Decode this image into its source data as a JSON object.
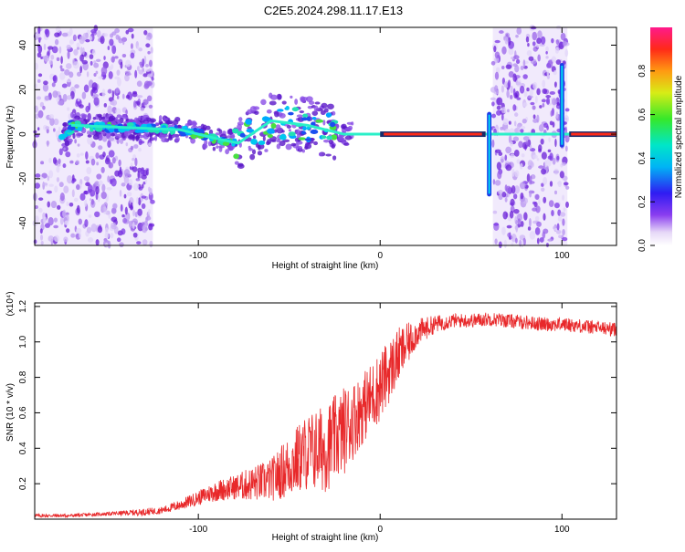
{
  "title": "C2E5.2024.298.11.17.E13",
  "colors": {
    "snr_line": "#e8282a",
    "spectrogram_bg": "#ffffff",
    "scatter_purple": "#7a2be0",
    "scatter_light": "#d9c8f5"
  },
  "chart_data": [
    {
      "type": "heatmap",
      "name": "spectrogram",
      "xlabel": "Height of straight line (km)",
      "ylabel": "Frequency (Hz)",
      "xlim": [
        -190,
        130
      ],
      "ylim": [
        -50,
        48
      ],
      "x_ticks": [
        -100,
        0,
        100
      ],
      "y_ticks": [
        40,
        20,
        0,
        -20,
        -40
      ],
      "x_tick_labels": [
        "-100",
        "0",
        "100"
      ],
      "y_tick_labels": [
        "40",
        "20",
        "0",
        "-20",
        "-40"
      ],
      "grid": false,
      "colorbar": {
        "label": "Normalized spectral amplitude",
        "range": [
          0,
          1
        ],
        "ticks": [
          0.0,
          0.2,
          0.4,
          0.6,
          0.8
        ],
        "tick_labels": [
          "0.0",
          "0.2",
          "0.4",
          "0.6",
          "0.8"
        ],
        "colormap": "rainbow (white-purple-blue-cyan-green-yellow-orange-red-magenta)"
      },
      "noise_regions_km": [
        [
          -190,
          -125
        ],
        [
          62,
          103
        ]
      ],
      "carrier_track": [
        {
          "x": -170,
          "y": 4
        },
        {
          "x": -140,
          "y": 3
        },
        {
          "x": -110,
          "y": 2
        },
        {
          "x": -90,
          "y": -2
        },
        {
          "x": -78,
          "y": -4
        },
        {
          "x": -60,
          "y": 6
        },
        {
          "x": -40,
          "y": 4
        },
        {
          "x": -20,
          "y": 0
        },
        {
          "x": 10,
          "y": 0
        },
        {
          "x": 55,
          "y": 0
        },
        {
          "x": 60,
          "y": 0
        },
        {
          "x": 105,
          "y": 0
        },
        {
          "x": 130,
          "y": 0
        }
      ]
    },
    {
      "type": "line",
      "name": "snr",
      "xlabel": "Height of straight line (km)",
      "ylabel": "SNR (10 * v/v)",
      "y_scale_note": "(x10⁴)",
      "xlim": [
        -190,
        130
      ],
      "ylim": [
        0,
        1.22
      ],
      "x_ticks": [
        -100,
        0,
        100
      ],
      "y_ticks": [
        0.2,
        0.4,
        0.6,
        0.8,
        1.0,
        1.2
      ],
      "x_tick_labels": [
        "-100",
        "0",
        "100"
      ],
      "y_tick_labels": [
        "0.2",
        "0.4",
        "0.6",
        "0.8",
        "1.0",
        "1.2"
      ],
      "grid": false,
      "series": [
        {
          "color": "#e8282a",
          "x": [
            -190,
            -170,
            -150,
            -130,
            -120,
            -110,
            -100,
            -90,
            -80,
            -70,
            -60,
            -50,
            -40,
            -30,
            -20,
            -10,
            0,
            10,
            20,
            30,
            40,
            50,
            60,
            70,
            80,
            90,
            100,
            110,
            120,
            130
          ],
          "y": [
            0.02,
            0.02,
            0.03,
            0.04,
            0.05,
            0.08,
            0.12,
            0.16,
            0.18,
            0.2,
            0.22,
            0.3,
            0.38,
            0.4,
            0.5,
            0.62,
            0.75,
            0.92,
            1.05,
            1.1,
            1.12,
            1.12,
            1.13,
            1.12,
            1.11,
            1.1,
            1.1,
            1.09,
            1.08,
            1.07
          ],
          "fluctuation": [
            0.01,
            0.01,
            0.01,
            0.02,
            0.02,
            0.03,
            0.04,
            0.06,
            0.07,
            0.1,
            0.12,
            0.18,
            0.22,
            0.25,
            0.25,
            0.2,
            0.2,
            0.16,
            0.08,
            0.05,
            0.04,
            0.04,
            0.04,
            0.04,
            0.04,
            0.04,
            0.04,
            0.04,
            0.04,
            0.04
          ]
        }
      ]
    }
  ]
}
